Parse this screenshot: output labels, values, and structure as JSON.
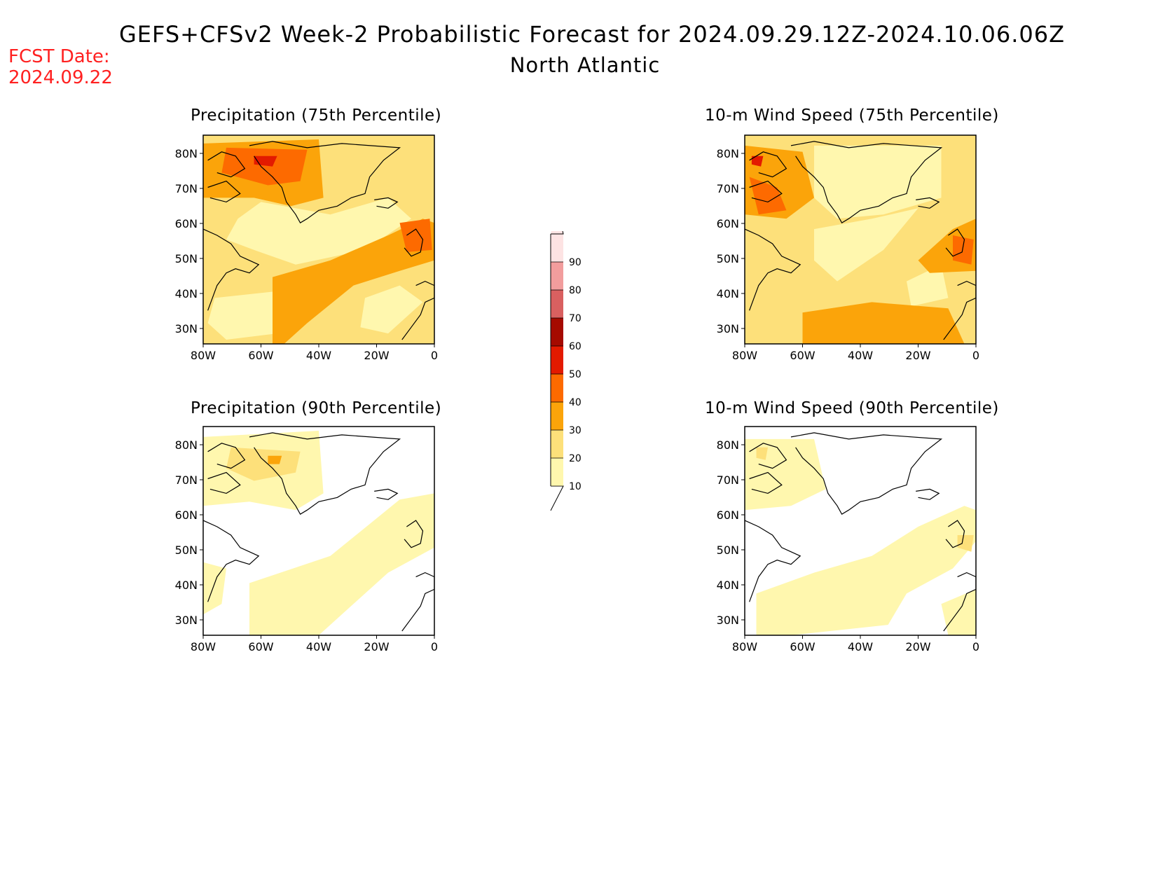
{
  "header": {
    "title": "GEFS+CFSv2 Week-2 Probabilistic Forecast for 2024.09.29.12Z-2024.10.06.06Z",
    "region": "North Atlantic",
    "fcst_label": "FCST Date:",
    "fcst_date": "2024.09.22"
  },
  "axes": {
    "lon_ticks": [
      "80W",
      "60W",
      "40W",
      "20W",
      "0"
    ],
    "lat_ticks": [
      "80N",
      "70N",
      "60N",
      "50N",
      "40N",
      "30N"
    ]
  },
  "panels": [
    {
      "id": "precip75",
      "title": "Precipitation (75th Percentile)"
    },
    {
      "id": "wind75",
      "title": "10-m Wind Speed (75th Percentile)"
    },
    {
      "id": "precip90",
      "title": "Precipitation (90th Percentile)"
    },
    {
      "id": "wind90",
      "title": "10-m Wind Speed (90th Percentile)"
    }
  ],
  "colorbar": {
    "levels": [
      "10",
      "20",
      "30",
      "40",
      "50",
      "60",
      "70",
      "80",
      "90"
    ],
    "colors": [
      "#fff7ae",
      "#fde07a",
      "#fba40a",
      "#fd6a00",
      "#e31a00",
      "#a50a00",
      "#d96060",
      "#f29d9d",
      "#fde3e3"
    ]
  },
  "colors": {
    "c10": "#fff7ae",
    "c20": "#fde07a",
    "c30": "#fba40a",
    "c40": "#fd6a00",
    "c50": "#e31a00",
    "fcst_text": "#ff2020"
  }
}
